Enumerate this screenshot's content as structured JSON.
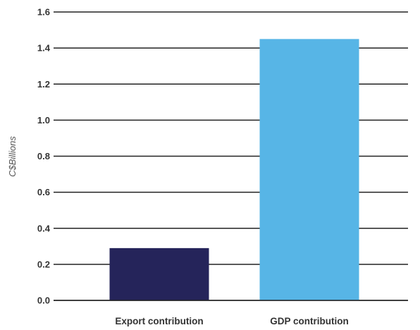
{
  "chart_data": {
    "type": "bar",
    "categories": [
      "Export contribution",
      "GDP contribution"
    ],
    "values": [
      0.29,
      1.45
    ],
    "colors": [
      "#25245a",
      "#57b5e6"
    ],
    "ylabel": "C$Billions",
    "xlabel": "",
    "title": "",
    "ylim": [
      0,
      1.6
    ],
    "yticks": [
      "0.0",
      "0.2",
      "0.4",
      "0.6",
      "0.8",
      "1.0",
      "1.2",
      "1.4",
      "1.6"
    ],
    "grid": true,
    "legend": "none"
  }
}
